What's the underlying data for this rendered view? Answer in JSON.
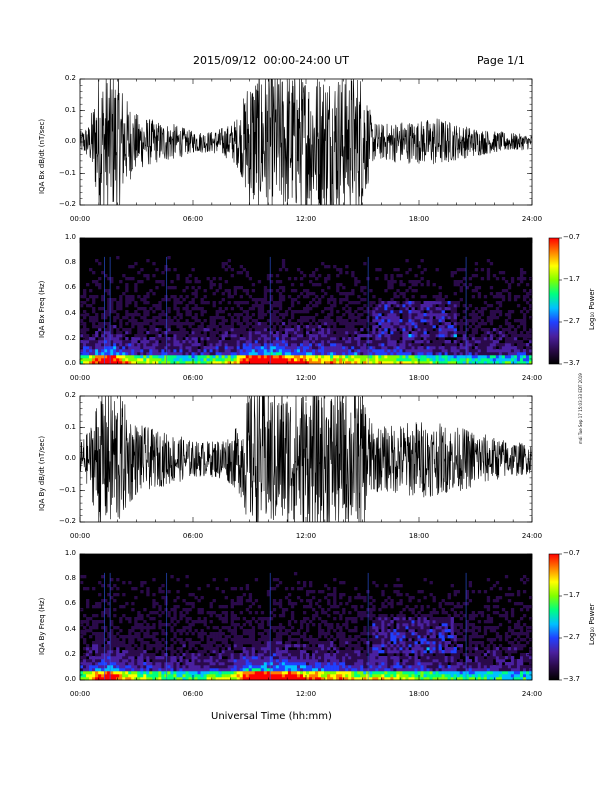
{
  "header": {
    "title": "2015/09/12  00:00-24:00 UT",
    "page": "Page 1/1"
  },
  "side_note": "mdi Tue Sep 17 15:03:33 EDT 2019",
  "xlabel": "Universal Time (hh:mm)",
  "x_ticks": [
    "00:00",
    "06:00",
    "12:00",
    "18:00",
    "24:00"
  ],
  "colors": {
    "waveform": "#000000",
    "spectrogram_background": "#000000",
    "colormap": [
      "#000000",
      "#2a0a4a",
      "#4a20a0",
      "#2040ff",
      "#00c0ff",
      "#00ff80",
      "#80ff00",
      "#ffff00",
      "#ff8000",
      "#ff0000"
    ]
  },
  "chart_data": [
    {
      "type": "line",
      "ylabel": "IQA Bx dB/dt (nT/sec)",
      "y_ticks": [
        "0.2",
        "0.1",
        "0.0",
        "−0.1",
        "−0.2"
      ],
      "ylim": [
        -0.2,
        0.2
      ],
      "xlim": [
        0,
        24
      ],
      "x_unit": "hours UT",
      "envelope": {
        "x": [
          0,
          0.5,
          1.0,
          1.5,
          2.0,
          2.5,
          3.0,
          4.0,
          5.0,
          6.0,
          7.0,
          8.0,
          8.5,
          9.0,
          9.5,
          10.0,
          10.5,
          11.0,
          12.0,
          13.0,
          14.0,
          15.0,
          15.5,
          16.0,
          17.0,
          18.0,
          19.0,
          20.0,
          21.0,
          22.0,
          23.0,
          24.0
        ],
        "y": [
          0.03,
          0.05,
          0.2,
          0.2,
          0.2,
          0.12,
          0.08,
          0.06,
          0.05,
          0.03,
          0.03,
          0.05,
          0.08,
          0.2,
          0.2,
          0.2,
          0.2,
          0.2,
          0.2,
          0.2,
          0.2,
          0.2,
          0.06,
          0.05,
          0.06,
          0.06,
          0.07,
          0.05,
          0.04,
          0.03,
          0.025,
          0.02
        ]
      }
    },
    {
      "type": "heatmap",
      "ylabel": "IQA Bx Freq (Hz)",
      "y_ticks": [
        "1.0",
        "0.8",
        "0.6",
        "0.4",
        "0.2",
        "0.0"
      ],
      "ylim": [
        0,
        1.0
      ],
      "xlim": [
        0,
        24
      ],
      "colorbar": {
        "label": "Log₁₀ Power",
        "ticks": [
          "−0.7",
          "−1.7",
          "−2.7",
          "−3.7"
        ],
        "range": [
          -3.7,
          -0.7
        ]
      }
    },
    {
      "type": "line",
      "ylabel": "IQA By dB/dt (nT/sec)",
      "y_ticks": [
        "0.2",
        "0.1",
        "0.0",
        "−0.1",
        "−0.2"
      ],
      "ylim": [
        -0.2,
        0.2
      ],
      "xlim": [
        0,
        24
      ],
      "x_unit": "hours UT",
      "envelope": {
        "x": [
          0,
          0.5,
          1.0,
          1.5,
          2.0,
          2.5,
          3.0,
          4.0,
          5.0,
          6.0,
          7.0,
          8.0,
          8.5,
          9.0,
          9.5,
          10.0,
          10.5,
          11.0,
          12.0,
          13.0,
          14.0,
          15.0,
          15.5,
          16.0,
          17.0,
          18.0,
          19.0,
          20.0,
          21.0,
          22.0,
          23.0,
          24.0
        ],
        "y": [
          0.05,
          0.08,
          0.2,
          0.2,
          0.2,
          0.14,
          0.1,
          0.08,
          0.07,
          0.05,
          0.05,
          0.07,
          0.1,
          0.2,
          0.2,
          0.2,
          0.2,
          0.2,
          0.2,
          0.2,
          0.2,
          0.2,
          0.1,
          0.09,
          0.1,
          0.11,
          0.1,
          0.09,
          0.08,
          0.06,
          0.05,
          0.04
        ]
      }
    },
    {
      "type": "heatmap",
      "ylabel": "IQA By Freq (Hz)",
      "y_ticks": [
        "1.0",
        "0.8",
        "0.6",
        "0.4",
        "0.2",
        "0.0"
      ],
      "ylim": [
        0,
        1.0
      ],
      "xlim": [
        0,
        24
      ],
      "colorbar": {
        "label": "Log₁₀ Power",
        "ticks": [
          "−0.7",
          "−1.7",
          "−2.7",
          "−3.7"
        ],
        "range": [
          -3.7,
          -0.7
        ]
      }
    }
  ]
}
